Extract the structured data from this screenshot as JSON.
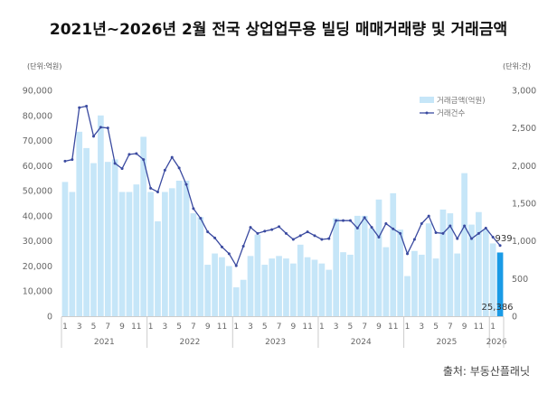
{
  "title": "2021년~2026년 2월 전국 상업업무용 빌딩 매매거래량 및 거래금액",
  "source": "출처: 부동산플래닛",
  "chart_data": {
    "type": "bar+line",
    "title": "2021년~2026년 2월 전국 상업업무용 빌딩 매매거래량 및 거래금액",
    "y_left_unit": "(단위:억원)",
    "y_right_unit": "(단위:건)",
    "y_left_range": [
      0,
      90000
    ],
    "y_left_ticks": [
      "0",
      "10,000",
      "20,000",
      "30,000",
      "40,000",
      "50,000",
      "60,000",
      "70,000",
      "80,000",
      "90,000"
    ],
    "y_right_range": [
      0,
      3000
    ],
    "y_right_ticks": [
      "0",
      "500",
      "1,000",
      "1,500",
      "2,000",
      "2,500",
      "3,000"
    ],
    "legend_position": "top-right",
    "years": [
      "2021",
      "2022",
      "2023",
      "2024",
      "2025",
      "2026"
    ],
    "month_tick_labels": [
      "1",
      "3",
      "5",
      "7",
      "9",
      "11"
    ],
    "series": [
      {
        "name": "거래금액(억원)",
        "type": "bar",
        "color": "#c6e6f8",
        "highlight_color": "#1a9be6",
        "values": [
          53500,
          49500,
          73500,
          67000,
          61000,
          80000,
          61500,
          62500,
          49500,
          49500,
          52500,
          71500,
          49500,
          37800,
          49500,
          51000,
          54000,
          54000,
          41000,
          39500,
          20500,
          25000,
          23500,
          20000,
          11500,
          14500,
          24000,
          32500,
          20500,
          23000,
          24000,
          23000,
          21000,
          28500,
          23500,
          22500,
          21000,
          18500,
          39000,
          25500,
          24500,
          40000,
          40000,
          35000,
          46500,
          27500,
          49000,
          34500,
          16000,
          26000,
          24500,
          37000,
          23000,
          42500,
          41000,
          25000,
          57000,
          36500,
          41500,
          34500,
          29000,
          25386
        ]
      },
      {
        "name": "거래건수",
        "type": "line",
        "color": "#3a4aa0",
        "values": [
          2060,
          2080,
          2770,
          2790,
          2390,
          2510,
          2500,
          2030,
          1960,
          2150,
          2160,
          2080,
          1700,
          1650,
          1940,
          2110,
          1970,
          1750,
          1430,
          1300,
          1120,
          1040,
          920,
          830,
          670,
          930,
          1180,
          1100,
          1130,
          1150,
          1190,
          1100,
          1020,
          1070,
          1120,
          1070,
          1020,
          1030,
          1270,
          1270,
          1270,
          1170,
          1310,
          1180,
          1050,
          1230,
          1160,
          1100,
          830,
          1020,
          1230,
          1330,
          1110,
          1100,
          1200,
          1030,
          1200,
          1030,
          1100,
          1170,
          1050,
          939
        ]
      }
    ],
    "annotations": {
      "last_bar_label": "25,386",
      "last_line_label": "939"
    }
  }
}
